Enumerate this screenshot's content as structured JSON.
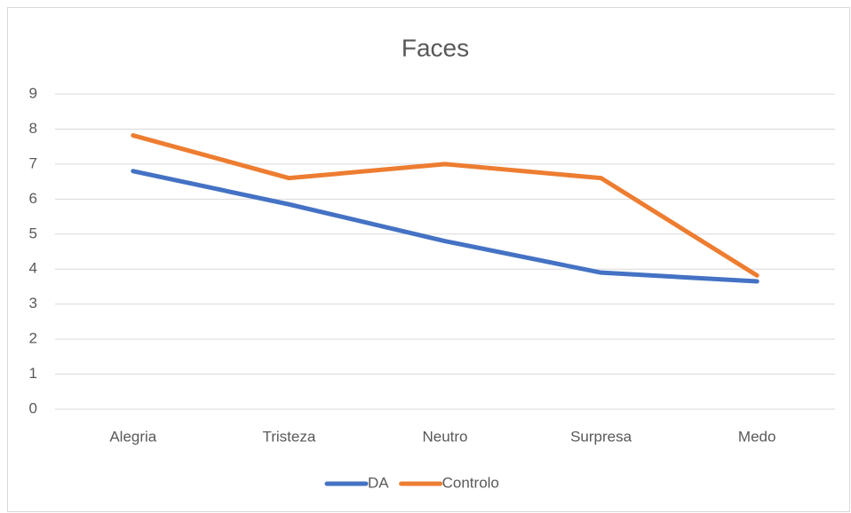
{
  "chart_data": {
    "type": "line",
    "title": "Faces",
    "categories": [
      "Alegria",
      "Tristeza",
      "Neutro",
      "Surpresa",
      "Medo"
    ],
    "series": [
      {
        "name": "DA",
        "color": "#4472c4",
        "values": [
          6.8,
          5.85,
          4.8,
          3.9,
          3.65
        ]
      },
      {
        "name": "Controlo",
        "color": "#ed7d31",
        "values": [
          7.82,
          6.6,
          7.0,
          6.6,
          3.82
        ]
      }
    ],
    "ylim": [
      0,
      9
    ],
    "yticks": [
      0,
      1,
      2,
      3,
      4,
      5,
      6,
      7,
      8,
      9
    ],
    "grid": true,
    "legend": "bottom"
  }
}
